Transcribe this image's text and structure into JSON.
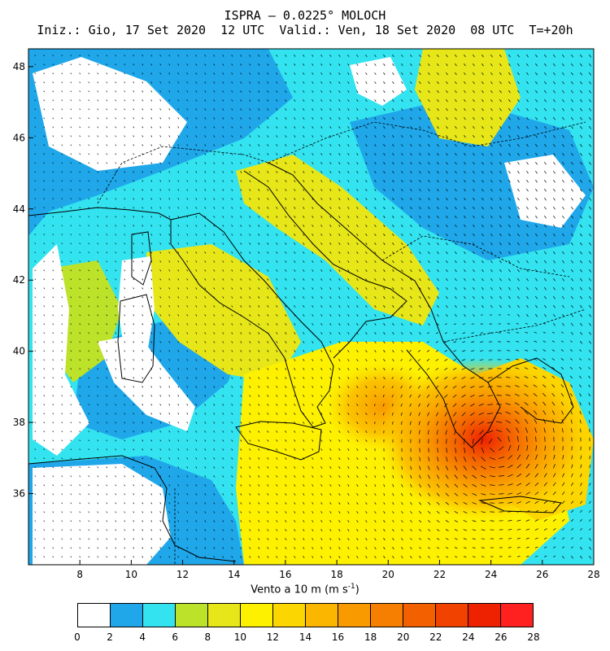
{
  "title_line1": "ISPRA – 0.0225° MOLOCH",
  "title_line2": "Iniz.: Gio, 17 Set 2020  12 UTC  Valid.: Ven, 18 Set 2020  08 UTC  T=+20h",
  "x_axis": {
    "range": [
      6,
      28
    ],
    "tick_labels": [
      "8",
      "10",
      "12",
      "14",
      "16",
      "18",
      "20",
      "22",
      "24",
      "26",
      "28"
    ]
  },
  "y_axis": {
    "range": [
      34,
      48.5
    ],
    "tick_labels": [
      "36",
      "38",
      "40",
      "42",
      "44",
      "46",
      "48"
    ]
  },
  "colorbar": {
    "label": "Vento a 10 m (m s",
    "label_sup": "-1",
    "label_end": ")",
    "boundaries": [
      "0",
      "2",
      "4",
      "6",
      "8",
      "10",
      "12",
      "14",
      "16",
      "18",
      "20",
      "22",
      "24",
      "26",
      "28"
    ],
    "colors": [
      "#ffffff",
      "#1fa7ea",
      "#33e3f0",
      "#bde22a",
      "#e6e619",
      "#fdf100",
      "#fcd600",
      "#fbb700",
      "#f99a00",
      "#f67e00",
      "#f36000",
      "#f14200",
      "#ee2200",
      "#ff2020"
    ]
  },
  "wind_field": {
    "cyclone_center": [
      24.2,
      37.4
    ],
    "peak_speed": 26
  }
}
